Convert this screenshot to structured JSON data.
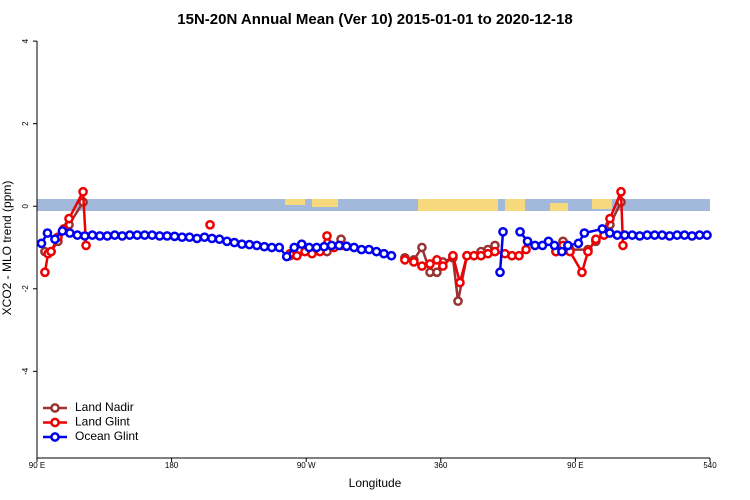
{
  "chart_data": {
    "type": "line",
    "title": "15N-20N Annual Mean (Ver 10)   2015-01-01 to 2020-12-18",
    "x_label": "Longitude",
    "y_label": "XCO2 - MLO trend (ppm)",
    "xlim": [
      90,
      540
    ],
    "ylim": [
      -6.1,
      4.1
    ],
    "xticks": [
      {
        "value": 90,
        "label": "90 E"
      },
      180,
      {
        "value": 270,
        "label": "90 W"
      },
      360,
      {
        "value": 450,
        "label": "90 E"
      },
      540
    ],
    "yticks": [
      -4,
      -2,
      0,
      2,
      4
    ],
    "legend": "bottom-left",
    "series": [
      {
        "name": "Land Nadir",
        "color": "#993333",
        "x": [
          95.3,
          99.4,
          104,
          108,
          111.4,
          120.8,
          190,
          259.2,
          283.9,
          293.3,
          320,
          336,
          342,
          347.4,
          352.8,
          357.4,
          361.4,
          368.1,
          371.5,
          377.5,
          386.9,
          391.5,
          396.2,
          420,
          437,
          441.7,
          446.4,
          458.4,
          463.7,
          473.1,
          480.5
        ],
        "values": [
          -1.1,
          -1.1,
          -0.85,
          -0.55,
          -0.45,
          0.1,
          null,
          -1.2,
          -1.1,
          -0.8,
          null,
          -1.25,
          -1.3,
          -1.0,
          -1.6,
          -1.6,
          -1.35,
          -1.25,
          -2.3,
          -1.2,
          -1.1,
          -1.05,
          -0.95,
          null,
          -1.1,
          -0.85,
          -1.05,
          -1.05,
          -0.85,
          -0.45,
          0.1
        ]
      },
      {
        "name": "Land Glint",
        "color": "#ee0000",
        "x": [
          95.3,
          97.4,
          99.4,
          104,
          108,
          111.4,
          120.8,
          122.8,
          160,
          205.7,
          230,
          259.2,
          263.8,
          269.2,
          273.9,
          279.2,
          283.9,
          288.6,
          293.3,
          320,
          336,
          342,
          347.4,
          352.8,
          357.4,
          361.4,
          368.1,
          372.8,
          377.5,
          382.2,
          386.9,
          391.5,
          396.2,
          402.9,
          407.6,
          412.3,
          417,
          428,
          437,
          441.7,
          446.4,
          454.4,
          458.4,
          463.7,
          469.1,
          473.1,
          480.5,
          481.8
        ],
        "values": [
          -1.6,
          -1.15,
          -1.1,
          -0.75,
          -0.55,
          -0.3,
          0.35,
          -0.95,
          null,
          -0.45,
          null,
          -1.15,
          -1.2,
          -1.1,
          -1.15,
          -1.1,
          -0.72,
          -1.0,
          -0.95,
          null,
          -1.3,
          -1.35,
          -1.45,
          -1.4,
          -1.3,
          -1.45,
          -1.2,
          -1.85,
          -1.2,
          -1.2,
          -1.2,
          -1.15,
          -1.1,
          -1.15,
          -1.2,
          -1.2,
          -1.05,
          null,
          -1.1,
          -0.95,
          -1.1,
          -1.6,
          -1.1,
          -0.8,
          -0.7,
          -0.3,
          0.35,
          -0.95
        ]
      },
      {
        "name": "Ocean Glint",
        "color": "#0000ee",
        "x": [
          93,
          97,
          102,
          107,
          112,
          117,
          122,
          127,
          132,
          137,
          142,
          147,
          152,
          157,
          162,
          167,
          172,
          177,
          182,
          187,
          192,
          197,
          202,
          207,
          212,
          217,
          222,
          227,
          232,
          237,
          242,
          247,
          252,
          257,
          262,
          267,
          272,
          277,
          282,
          287,
          292,
          297,
          302,
          307,
          312,
          317,
          322,
          327,
          360,
          399.6,
          401.6,
          408,
          413,
          418,
          423,
          428,
          432,
          436,
          441,
          445,
          452,
          456,
          468,
          473,
          478,
          483,
          488,
          493,
          498,
          503,
          508,
          513,
          518,
          523,
          528,
          533,
          538
        ],
        "values": [
          -0.9,
          -0.65,
          -0.8,
          -0.6,
          -0.65,
          -0.7,
          -0.72,
          -0.7,
          -0.72,
          -0.72,
          -0.7,
          -0.72,
          -0.7,
          -0.7,
          -0.7,
          -0.7,
          -0.72,
          -0.72,
          -0.73,
          -0.75,
          -0.75,
          -0.78,
          -0.75,
          -0.78,
          -0.8,
          -0.85,
          -0.88,
          -0.92,
          -0.93,
          -0.95,
          -0.98,
          -1.0,
          -1.0,
          -1.22,
          -1.0,
          -0.92,
          -1.0,
          -1.0,
          -0.98,
          -0.95,
          -0.95,
          -0.97,
          -1.0,
          -1.05,
          -1.05,
          -1.1,
          -1.15,
          -1.2,
          null,
          -1.6,
          -0.62,
          null,
          -0.62,
          -0.85,
          -0.95,
          -0.95,
          -0.85,
          -0.95,
          -1.1,
          -0.95,
          -0.9,
          -0.65,
          -0.55,
          -0.65,
          -0.7,
          -0.7,
          -0.7,
          -0.72,
          -0.7,
          -0.7,
          -0.7,
          -0.72,
          -0.7,
          -0.7,
          -0.72,
          -0.7,
          -0.7
        ]
      }
    ]
  }
}
